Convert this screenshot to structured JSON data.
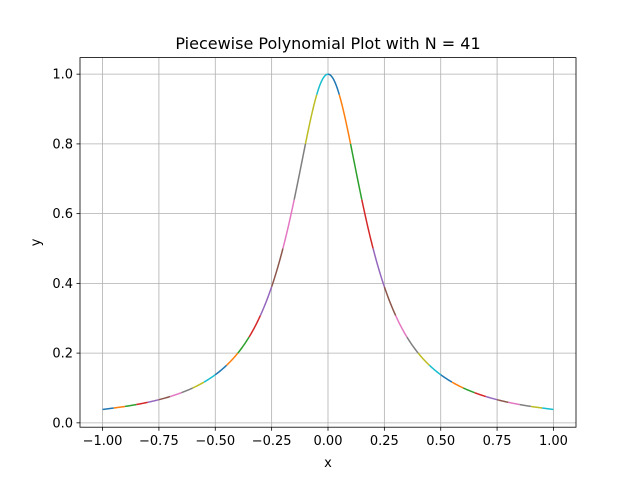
{
  "chart_data": {
    "type": "line",
    "title": "Piecewise Polynomial Plot with N = 41",
    "xlabel": "x",
    "ylabel": "y",
    "xlim": [
      -1.1,
      1.1
    ],
    "ylim": [
      -0.0125,
      1.0475
    ],
    "xticks": [
      -1.0,
      -0.75,
      -0.5,
      -0.25,
      0.0,
      0.25,
      0.5,
      0.75,
      1.0
    ],
    "xtick_labels": [
      "−1.00",
      "−0.75",
      "−0.50",
      "−0.25",
      "0.00",
      "0.25",
      "0.50",
      "0.75",
      "1.00"
    ],
    "yticks": [
      0.0,
      0.2,
      0.4,
      0.6,
      0.8,
      1.0
    ],
    "ytick_labels": [
      "0.0",
      "0.2",
      "0.4",
      "0.6",
      "0.8",
      "1.0"
    ],
    "grid": true,
    "function": "1/(1+25x^2)",
    "x_range": [
      -1.0,
      1.0
    ],
    "num_pieces": 41,
    "segment_colors": [
      "#1f77b4",
      "#ff7f0e",
      "#2ca02c",
      "#d62728",
      "#9467bd",
      "#8c564b",
      "#e377c2",
      "#7f7f7f",
      "#bcbd22",
      "#17becf"
    ]
  }
}
